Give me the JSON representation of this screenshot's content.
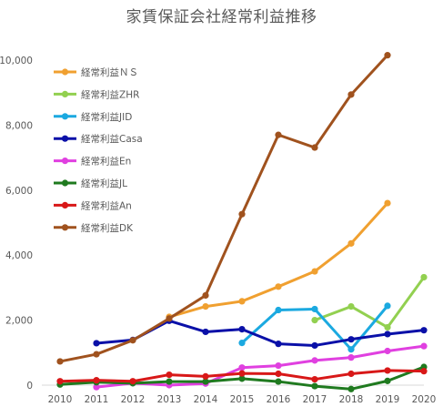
{
  "chart_data": {
    "type": "line",
    "title": "家賃保証会社経常利益推移",
    "xlabel": "",
    "ylabel": "",
    "x": [
      2010,
      2011,
      2012,
      2013,
      2014,
      2015,
      2016,
      2017,
      2018,
      2019,
      2020
    ],
    "x_ticks": [
      "2010",
      "2011",
      "2012",
      "2013",
      "2014",
      "2015",
      "2016",
      "2017",
      "2018",
      "2019",
      "2020"
    ],
    "ylim": [
      0,
      10000
    ],
    "y_ticks": [
      0,
      2000,
      4000,
      6000,
      8000,
      10000
    ],
    "y_tick_labels": [
      "0",
      "2,000",
      "4,000",
      "6,000",
      "8,000",
      "10,000"
    ],
    "grid": false,
    "legend_position": "top-left",
    "series": [
      {
        "name": "経常利益ＮＳ",
        "color": "#F0A030",
        "values": [
          null,
          null,
          null,
          2100,
          2420,
          2580,
          3030,
          3500,
          4360,
          5600,
          null
        ]
      },
      {
        "name": "経常利益ZHR",
        "color": "#92D050",
        "values": [
          null,
          null,
          null,
          null,
          null,
          null,
          null,
          2000,
          2420,
          1780,
          3320
        ]
      },
      {
        "name": "経常利益JID",
        "color": "#1BA9E0",
        "values": [
          null,
          null,
          null,
          null,
          null,
          1300,
          2310,
          2340,
          1100,
          2440,
          null
        ]
      },
      {
        "name": "経常利益Casa",
        "color": "#0A10A8",
        "values": [
          null,
          1290,
          1390,
          1980,
          1640,
          1720,
          1270,
          1220,
          1410,
          1570,
          1690
        ]
      },
      {
        "name": "経常利益En",
        "color": "#E040E0",
        "values": [
          null,
          -60,
          60,
          0,
          50,
          540,
          600,
          760,
          850,
          1050,
          1200
        ]
      },
      {
        "name": "経常利益JL",
        "color": "#1F7A1F",
        "values": [
          20,
          90,
          60,
          110,
          110,
          200,
          110,
          -30,
          -120,
          130,
          560
        ]
      },
      {
        "name": "経常利益An",
        "color": "#D81818",
        "values": [
          120,
          150,
          120,
          320,
          270,
          360,
          350,
          180,
          350,
          450,
          430
        ]
      },
      {
        "name": "経常利益DK",
        "color": "#A0521E",
        "values": [
          730,
          950,
          1380,
          2050,
          2760,
          5260,
          7700,
          7310,
          8940,
          10150,
          null
        ]
      }
    ]
  }
}
